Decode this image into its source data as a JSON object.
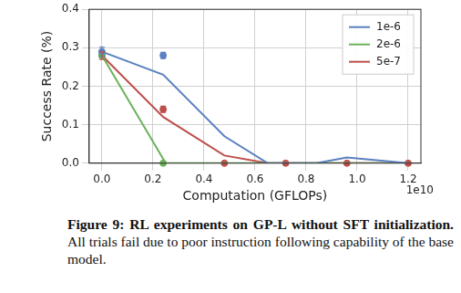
{
  "chart_data": {
    "type": "line",
    "x_label": "Computation (GFLOPs)",
    "y_label": "Success Rate (%)",
    "x_offset_label": "1e10",
    "xlim": [
      -0.05,
      1.25
    ],
    "xticks": [
      {
        "value": 0,
        "label": "0.0"
      },
      0.2,
      0.4,
      0.6,
      0.8,
      {
        "value": 1,
        "label": "1.0"
      },
      1.2
    ],
    "ylim": [
      0,
      0.4
    ],
    "yticks": [
      {
        "value": 0,
        "label": "0.0"
      },
      0.1,
      0.2,
      0.3,
      0.4
    ],
    "grid": true,
    "legend": "upper right",
    "series": [
      {
        "name": "1e-6",
        "color": "#5a80c0",
        "x": [
          0,
          0.24,
          0.48,
          0.65,
          0.84,
          0.96,
          1.2
        ],
        "values": [
          0.29,
          0.23,
          0.07,
          0,
          0,
          0.015,
          0
        ],
        "points": {
          "x": [
            0,
            0.24
          ],
          "values": [
            0.29,
            0.28
          ],
          "errors": [
            0.012,
            0.008
          ]
        }
      },
      {
        "name": "2e-6",
        "color": "#6bb25a",
        "x": [
          0,
          0.25,
          0.48,
          0.72,
          0.96,
          1.2
        ],
        "values": [
          0.28,
          0,
          0,
          0,
          0,
          0
        ],
        "points": {
          "x": [
            0,
            0.24
          ],
          "values": [
            0.28,
            0
          ],
          "errors": [
            0.01,
            0
          ]
        }
      },
      {
        "name": "5e-7",
        "color": "#bc4f4b",
        "x": [
          0,
          0.24,
          0.48,
          0.65,
          0.84,
          0.96,
          1.2
        ],
        "values": [
          0.28,
          0.12,
          0.02,
          0,
          0,
          0,
          0
        ],
        "points": {
          "x": [
            0,
            0.24,
            0.48,
            0.72,
            0.96,
            1.2
          ],
          "values": [
            0.28,
            0.14,
            0,
            0,
            0,
            0
          ],
          "errors": [
            0.01,
            0.008,
            0,
            0,
            0,
            0
          ]
        }
      }
    ]
  },
  "caption": {
    "bold": "Figure 9: RL experiments on GP-L without SFT initialization.",
    "text": "All trials fail due to poor instruction following capability of the base model."
  }
}
